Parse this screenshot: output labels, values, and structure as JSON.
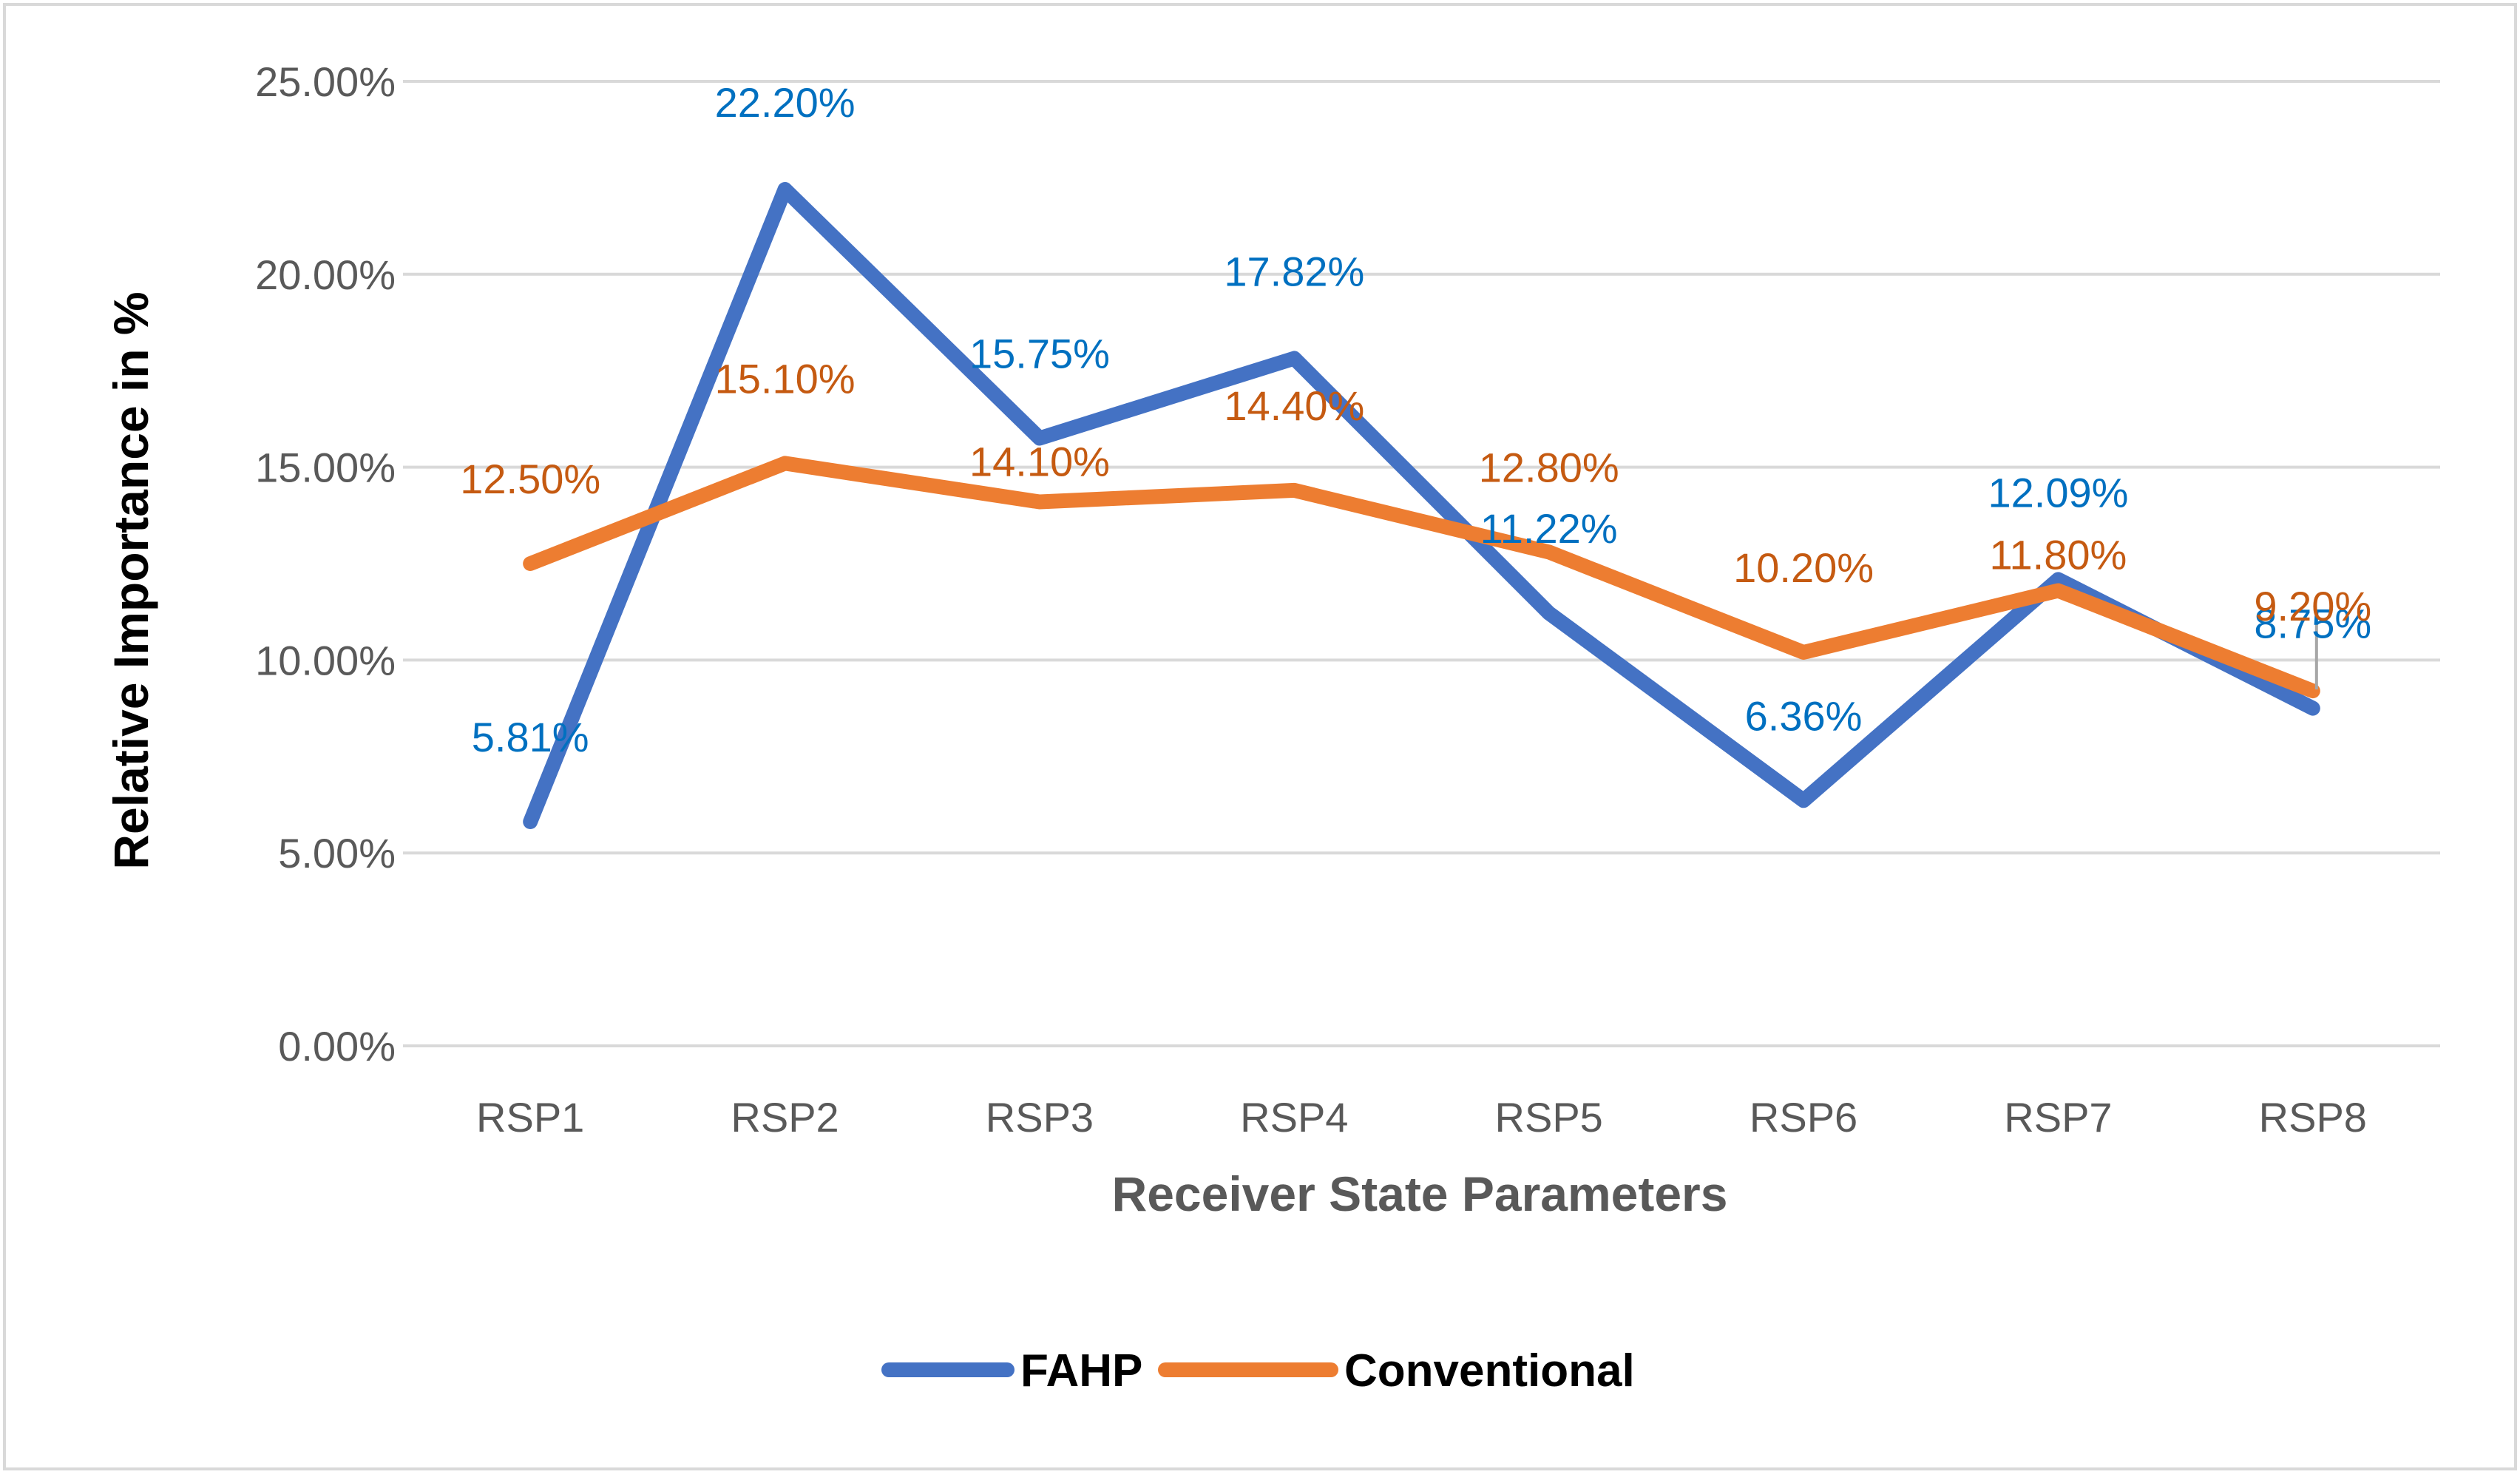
{
  "chart_data": {
    "type": "line",
    "title": "",
    "categories": [
      "RSP1",
      "RSP2",
      "RSP3",
      "RSP4",
      "RSP5",
      "RSP6",
      "RSP7",
      "RSP8"
    ],
    "series": [
      {
        "name": "FAHP",
        "color": "#4472C4",
        "label_color": "#0070C0",
        "values": [
          5.81,
          22.2,
          15.75,
          17.82,
          11.22,
          6.36,
          12.09,
          8.75
        ],
        "labels": [
          "5.81%",
          "22.20%",
          "15.75%",
          "17.82%",
          "11.22%",
          "6.36%",
          "12.09%",
          "8.75%"
        ]
      },
      {
        "name": "Conventional",
        "color": "#ED7D31",
        "label_color": "#C55A11",
        "values": [
          12.5,
          15.1,
          14.1,
          14.4,
          12.8,
          10.2,
          11.8,
          9.2
        ],
        "labels": [
          "12.50%",
          "15.10%",
          "14.10%",
          "14.40%",
          "12.80%",
          "10.20%",
          "11.80%",
          "9.20%"
        ]
      }
    ],
    "ylim": [
      0,
      25
    ],
    "yticks": [
      0,
      5,
      10,
      15,
      20,
      25
    ],
    "ytick_labels": [
      "0.00%",
      "5.00%",
      "10.00%",
      "15.00%",
      "20.00%",
      "25.00%"
    ],
    "xlabel": "Receiver State Parameters",
    "ylabel": "Relative Importance in %",
    "grid": true,
    "legend": "bottom-center",
    "colors": {
      "gridline": "#D9D9D9",
      "tick_text": "#595959",
      "xlabel_text": "#595959",
      "ylabel_text": "#000000",
      "border": "#D9D9D9",
      "leader_line": "#A6A6A6"
    }
  }
}
